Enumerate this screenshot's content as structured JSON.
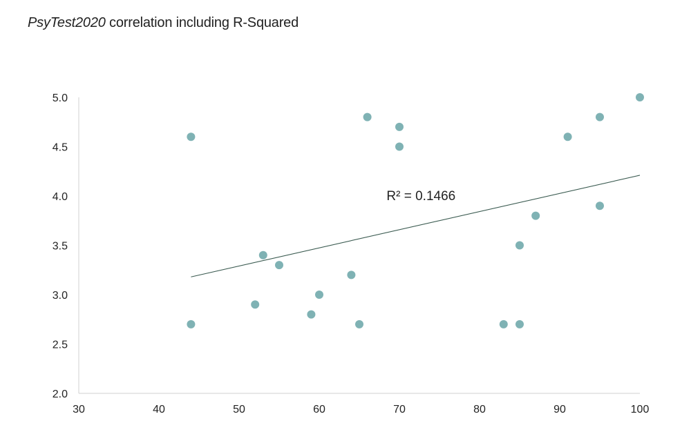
{
  "chart_data": {
    "type": "scatter",
    "title_italic": "PsyTest2020",
    "title_rest": " correlation including R-Squared",
    "xlim": [
      30,
      100
    ],
    "ylim": [
      2.0,
      5.0
    ],
    "x_ticks": [
      30,
      40,
      50,
      60,
      70,
      80,
      90,
      100
    ],
    "y_ticks": [
      "2.0",
      "2.5",
      "3.0",
      "3.5",
      "4.0",
      "4.5",
      "5.0"
    ],
    "grid": false,
    "points": [
      {
        "x": 44,
        "y": 4.6
      },
      {
        "x": 44,
        "y": 2.7
      },
      {
        "x": 52,
        "y": 2.9
      },
      {
        "x": 53,
        "y": 3.4
      },
      {
        "x": 55,
        "y": 3.3
      },
      {
        "x": 59,
        "y": 2.8
      },
      {
        "x": 60,
        "y": 3.0
      },
      {
        "x": 64,
        "y": 3.2
      },
      {
        "x": 65,
        "y": 2.7
      },
      {
        "x": 66,
        "y": 4.8
      },
      {
        "x": 70,
        "y": 4.7
      },
      {
        "x": 70,
        "y": 4.5
      },
      {
        "x": 83,
        "y": 2.7
      },
      {
        "x": 85,
        "y": 3.5
      },
      {
        "x": 85,
        "y": 2.7
      },
      {
        "x": 87,
        "y": 3.8
      },
      {
        "x": 91,
        "y": 4.6
      },
      {
        "x": 95,
        "y": 4.8
      },
      {
        "x": 95,
        "y": 3.9
      },
      {
        "x": 100,
        "y": 5.0
      }
    ],
    "trendline": {
      "type": "linear",
      "start": {
        "x": 44,
        "y": 3.18
      },
      "end": {
        "x": 100,
        "y": 4.21
      },
      "r_squared_label": "R² = 0.1466",
      "r_squared_anchor": {
        "x": 69,
        "y": 4.0
      }
    },
    "colors": {
      "marker": "#7fb2b4",
      "trendline": "#3a5a50",
      "axis": "#d0d0d0",
      "text": "#222222"
    }
  }
}
